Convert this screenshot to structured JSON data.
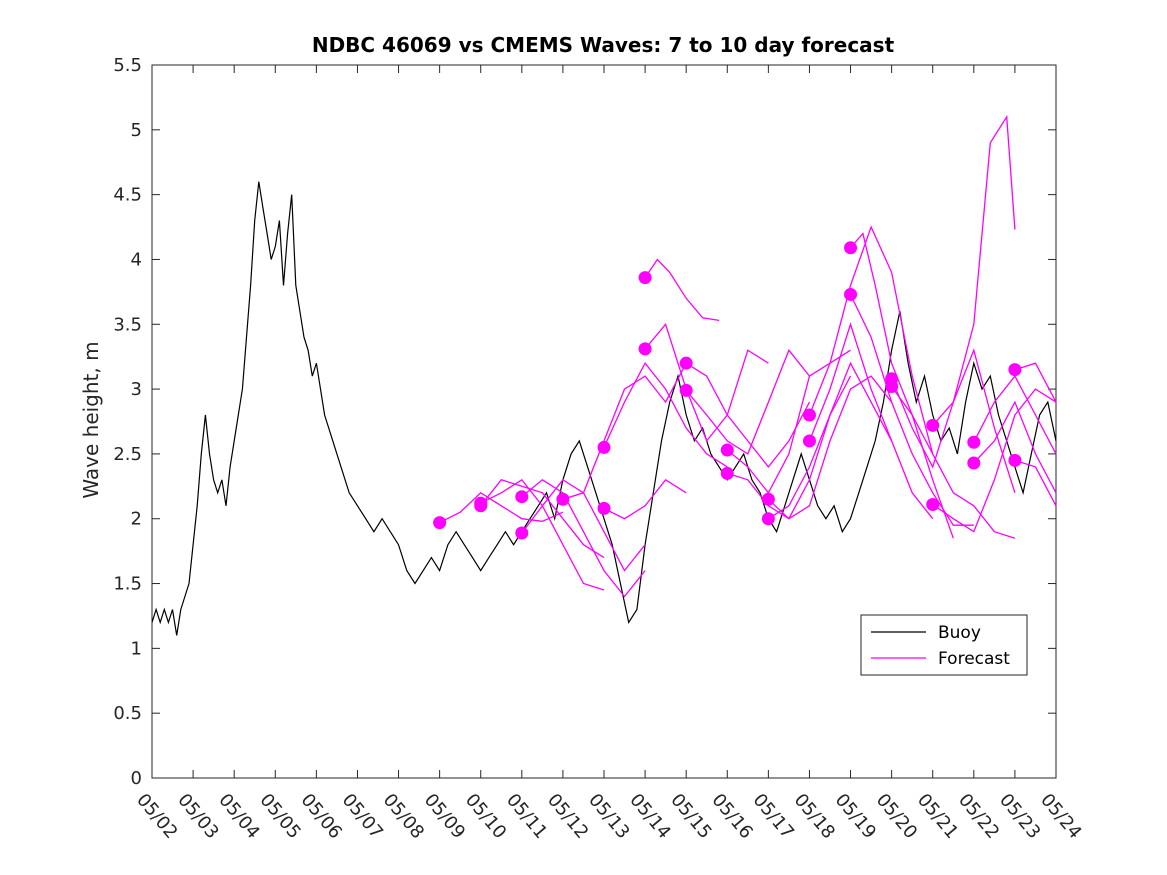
{
  "chart_data": {
    "type": "line",
    "title": "NDBC 46069 vs CMEMS Waves: 7 to 10 day forecast",
    "xlabel": "",
    "ylabel": "Wave height, m",
    "xlim": [
      "05/02",
      "05/24"
    ],
    "ylim": [
      0,
      5.5
    ],
    "x_ticks": [
      "05/02",
      "05/03",
      "05/04",
      "05/05",
      "05/06",
      "05/07",
      "05/08",
      "05/09",
      "05/10",
      "05/11",
      "05/12",
      "05/13",
      "05/14",
      "05/15",
      "05/16",
      "05/17",
      "05/18",
      "05/19",
      "05/20",
      "05/21",
      "05/22",
      "05/23",
      "05/24"
    ],
    "y_ticks": [
      "0",
      "0.5",
      "1",
      "1.5",
      "2",
      "2.5",
      "3",
      "3.5",
      "4",
      "4.5",
      "5",
      "5.5"
    ],
    "grid": false,
    "legend": {
      "placement": "lower-right",
      "entries": [
        "Buoy",
        "Forecast"
      ]
    },
    "colors": {
      "buoy": "#000000",
      "forecast": "#ff00ff"
    },
    "series": [
      {
        "name": "Buoy",
        "note_x_units": "days after 05/02 00:00",
        "x": [
          0,
          0.1,
          0.2,
          0.3,
          0.4,
          0.5,
          0.6,
          0.7,
          0.8,
          0.9,
          1.0,
          1.1,
          1.2,
          1.3,
          1.4,
          1.5,
          1.6,
          1.7,
          1.8,
          1.9,
          2.0,
          2.1,
          2.2,
          2.3,
          2.4,
          2.5,
          2.6,
          2.7,
          2.8,
          2.9,
          3.0,
          3.1,
          3.2,
          3.3,
          3.4,
          3.5,
          3.6,
          3.7,
          3.8,
          3.9,
          4.0,
          4.2,
          4.4,
          4.6,
          4.8,
          5.0,
          5.2,
          5.4,
          5.6,
          5.8,
          6.0,
          6.2,
          6.4,
          6.6,
          6.8,
          7.0,
          7.2,
          7.4,
          7.6,
          7.8,
          8.0,
          8.2,
          8.4,
          8.6,
          8.8,
          9.0,
          9.2,
          9.4,
          9.6,
          9.8,
          10.0,
          10.2,
          10.4,
          10.6,
          10.8,
          11.0,
          11.2,
          11.4,
          11.6,
          11.8,
          12.0,
          12.2,
          12.4,
          12.6,
          12.8,
          13.0,
          13.2,
          13.4,
          13.6,
          13.8,
          14.0,
          14.2,
          14.4,
          14.6,
          14.8,
          15.0,
          15.2,
          15.4,
          15.6,
          15.8,
          16.0,
          16.2,
          16.4,
          16.6,
          16.8,
          17.0,
          17.2,
          17.4,
          17.6,
          17.8,
          18.0,
          18.2,
          18.4,
          18.6,
          18.8,
          19.0,
          19.2,
          19.4,
          19.6,
          19.8,
          20.0,
          20.2,
          20.4,
          20.6,
          20.8,
          21.0,
          21.2,
          21.4,
          21.6,
          21.8,
          22.0
        ],
        "y": [
          1.2,
          1.3,
          1.2,
          1.3,
          1.2,
          1.3,
          1.1,
          1.3,
          1.4,
          1.5,
          1.8,
          2.1,
          2.5,
          2.8,
          2.5,
          2.3,
          2.2,
          2.3,
          2.1,
          2.4,
          2.6,
          2.8,
          3.0,
          3.4,
          3.8,
          4.3,
          4.6,
          4.4,
          4.2,
          4.0,
          4.1,
          4.3,
          3.8,
          4.2,
          4.5,
          3.8,
          3.6,
          3.4,
          3.3,
          3.1,
          3.2,
          2.8,
          2.6,
          2.4,
          2.2,
          2.1,
          2.0,
          1.9,
          2.0,
          1.9,
          1.8,
          1.6,
          1.5,
          1.6,
          1.7,
          1.6,
          1.8,
          1.9,
          1.8,
          1.7,
          1.6,
          1.7,
          1.8,
          1.9,
          1.8,
          1.9,
          2.0,
          2.1,
          2.2,
          2.0,
          2.3,
          2.5,
          2.6,
          2.4,
          2.2,
          2.0,
          1.8,
          1.5,
          1.2,
          1.3,
          1.8,
          2.2,
          2.6,
          2.9,
          3.1,
          2.8,
          2.6,
          2.7,
          2.5,
          2.4,
          2.3,
          2.4,
          2.5,
          2.3,
          2.2,
          2.0,
          1.9,
          2.1,
          2.3,
          2.5,
          2.3,
          2.1,
          2.0,
          2.1,
          1.9,
          2.0,
          2.2,
          2.4,
          2.6,
          2.9,
          3.3,
          3.6,
          3.2,
          2.9,
          3.1,
          2.8,
          2.6,
          2.7,
          2.5,
          2.9,
          3.2,
          3.0,
          3.1,
          2.8,
          2.6,
          2.4,
          2.2,
          2.5,
          2.8,
          2.9,
          2.6
        ]
      },
      {
        "name": "Forecast",
        "runs": [
          {
            "x": [
              7.0,
              7.5,
              8.0,
              8.5,
              9.0,
              9.5,
              10.0
            ],
            "y": [
              1.97,
              2.05,
              2.2,
              2.1,
              2.0,
              1.98,
              2.05
            ]
          },
          {
            "x": [
              8.0,
              8.5,
              9.0,
              9.5,
              10.0,
              10.5,
              11.0
            ],
            "y": [
              2.1,
              2.3,
              2.25,
              2.2,
              2.0,
              1.8,
              1.7
            ]
          },
          {
            "x": [
              8.0,
              8.5,
              9.0,
              9.5,
              10.0,
              10.5,
              11.0
            ],
            "y": [
              2.12,
              2.2,
              2.3,
              2.1,
              1.8,
              1.5,
              1.45
            ]
          },
          {
            "x": [
              9.0,
              9.5,
              10.0,
              10.5,
              11.0,
              11.5,
              12.0
            ],
            "y": [
              1.89,
              2.1,
              2.3,
              2.2,
              1.9,
              1.6,
              1.8
            ]
          },
          {
            "x": [
              9.0,
              9.5,
              10.0,
              10.5,
              11.0,
              11.5,
              12.0
            ],
            "y": [
              2.17,
              2.3,
              2.2,
              1.9,
              1.6,
              1.4,
              1.6
            ]
          },
          {
            "x": [
              10.0,
              10.5,
              11.0,
              11.5,
              12.0,
              12.5,
              13.0
            ],
            "y": [
              2.15,
              2.2,
              2.6,
              3.0,
              3.1,
              2.9,
              3.2
            ]
          },
          {
            "x": [
              11.0,
              11.5,
              12.0,
              12.5,
              13.0
            ],
            "y": [
              2.08,
              2.0,
              2.1,
              2.3,
              2.2
            ]
          },
          {
            "x": [
              11.0,
              11.5,
              12.0,
              12.5,
              13.0,
              13.5,
              14.0
            ],
            "y": [
              2.55,
              2.9,
              3.2,
              3.0,
              2.7,
              2.5,
              2.4
            ]
          },
          {
            "x": [
              12.0,
              12.3,
              12.6,
              13.0,
              13.4,
              13.8
            ],
            "y": [
              3.86,
              4.0,
              3.9,
              3.7,
              3.55,
              3.53
            ]
          },
          {
            "x": [
              12.0,
              12.5,
              13.0,
              13.5,
              14.0,
              14.5,
              15.0
            ],
            "y": [
              3.31,
              3.5,
              3.0,
              2.6,
              2.8,
              3.3,
              3.2
            ]
          },
          {
            "x": [
              13.0,
              13.5,
              14.0,
              14.5,
              15.0,
              15.5,
              16.0
            ],
            "y": [
              3.2,
              3.1,
              2.8,
              2.6,
              2.4,
              2.6,
              2.9
            ]
          },
          {
            "x": [
              13.0,
              13.5,
              14.0,
              14.5,
              15.0,
              15.5,
              16.0
            ],
            "y": [
              2.99,
              2.8,
              2.6,
              2.5,
              2.9,
              3.3,
              3.1
            ]
          },
          {
            "x": [
              14.0,
              14.5,
              15.0,
              15.5,
              16.0,
              16.5,
              17.0
            ],
            "y": [
              2.53,
              2.4,
              2.2,
              2.5,
              3.1,
              3.2,
              3.3
            ]
          },
          {
            "x": [
              14.0,
              14.5,
              15.0,
              15.5,
              16.0,
              16.5,
              17.0
            ],
            "y": [
              2.35,
              2.3,
              2.1,
              2.0,
              2.3,
              2.8,
              3.1
            ]
          },
          {
            "x": [
              15.0,
              15.5,
              16.0,
              16.5,
              17.0,
              17.5,
              18.0
            ],
            "y": [
              2.15,
              2.0,
              2.1,
              2.6,
              3.0,
              3.1,
              2.9
            ]
          },
          {
            "x": [
              15.0,
              15.5,
              16.0,
              16.5,
              17.0,
              17.5,
              18.0
            ],
            "y": [
              2.0,
              2.1,
              2.4,
              2.8,
              3.2,
              2.9,
              2.6
            ]
          },
          {
            "x": [
              16.0,
              16.5,
              17.0,
              17.5,
              18.0,
              18.5,
              19.0
            ],
            "y": [
              2.8,
              3.2,
              3.8,
              4.25,
              3.9,
              3.1,
              2.5
            ]
          },
          {
            "x": [
              16.0,
              16.5,
              17.0,
              17.5,
              18.0,
              18.5,
              19.0
            ],
            "y": [
              2.6,
              3.0,
              3.5,
              3.0,
              2.6,
              2.2,
              2.0
            ]
          },
          {
            "x": [
              17.0,
              17.3,
              17.6,
              18.0,
              18.5,
              19.0,
              19.5
            ],
            "y": [
              4.09,
              4.2,
              3.8,
              3.2,
              2.8,
              2.3,
              1.85
            ]
          },
          {
            "x": [
              17.0,
              17.5,
              18.0,
              18.5,
              19.0,
              19.5,
              20.0
            ],
            "y": [
              3.73,
              3.4,
              2.9,
              2.5,
              2.2,
              1.95,
              1.95
            ]
          },
          {
            "x": [
              18.0,
              18.5,
              19.0,
              19.5,
              20.0,
              20.5,
              21.0
            ],
            "y": [
              3.08,
              2.7,
              2.4,
              2.9,
              3.3,
              2.7,
              2.2
            ]
          },
          {
            "x": [
              18.0,
              18.5,
              19.0,
              19.5,
              20.0,
              20.5,
              21.0
            ],
            "y": [
              3.02,
              2.8,
              2.5,
              2.2,
              2.1,
              1.9,
              1.85
            ]
          },
          {
            "x": [
              19.0,
              19.5,
              20.0,
              20.4,
              20.8,
              21.0
            ],
            "y": [
              2.72,
              2.9,
              3.5,
              4.9,
              5.1,
              4.23
            ]
          },
          {
            "x": [
              19.0,
              19.5,
              20.0,
              20.5,
              21.0,
              21.5,
              22.0
            ],
            "y": [
              2.11,
              2.0,
              1.9,
              2.3,
              2.8,
              3.0,
              2.9
            ]
          },
          {
            "x": [
              20.0,
              20.5,
              21.0,
              21.5,
              22.0
            ],
            "y": [
              2.59,
              2.9,
              3.1,
              2.8,
              2.5
            ]
          },
          {
            "x": [
              20.0,
              20.5,
              21.0,
              21.5,
              22.0
            ],
            "y": [
              2.43,
              2.6,
              2.9,
              2.5,
              2.2
            ]
          },
          {
            "x": [
              21.0,
              21.5,
              22.0
            ],
            "y": [
              3.15,
              3.2,
              2.9
            ]
          },
          {
            "x": [
              21.0,
              21.5,
              22.0
            ],
            "y": [
              2.45,
              2.4,
              2.1
            ]
          }
        ]
      }
    ]
  }
}
